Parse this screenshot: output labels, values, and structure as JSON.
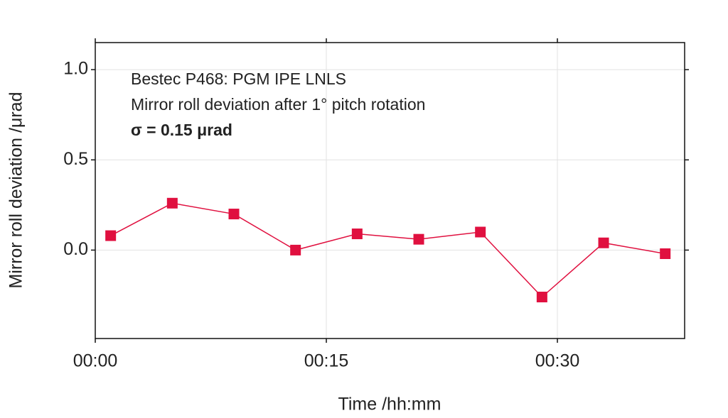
{
  "chart_data": {
    "type": "line",
    "annotations": [
      "Bestec P468: PGM IPE LNLS",
      "Mirror roll deviation after 1° pitch rotation",
      "σ = 0.15 μrad"
    ],
    "x_label": "Time /hh:mm",
    "y_label": "Mirror roll deviation /μrad",
    "x": [
      1,
      5,
      9,
      13,
      17,
      21,
      25,
      29,
      33,
      37
    ],
    "values": [
      0.08,
      0.26,
      0.2,
      0.0,
      0.09,
      0.06,
      0.1,
      -0.26,
      0.04,
      -0.02
    ],
    "color": "#e0103f",
    "xlim": [
      0,
      38.26
    ],
    "ylim": [
      -0.49,
      1.15
    ],
    "xticks": [
      {
        "value": 0,
        "label": "00:00"
      },
      {
        "value": 15,
        "label": "00:15"
      },
      {
        "value": 30,
        "label": "00:30"
      }
    ],
    "yticks": [
      {
        "value": 0,
        "label": "0.0"
      },
      0.5,
      {
        "value": 1,
        "label": "1.0"
      }
    ],
    "grid": true
  }
}
